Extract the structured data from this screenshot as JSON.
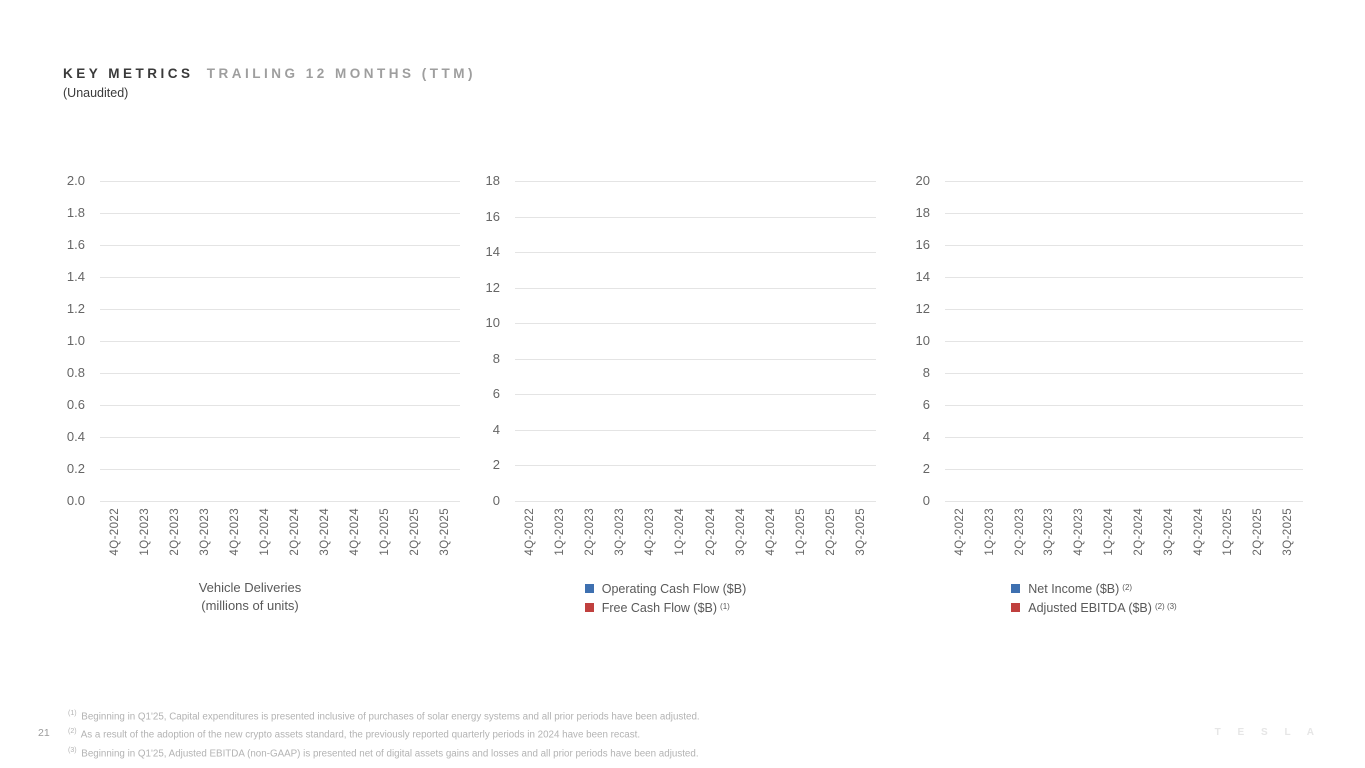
{
  "slide": {
    "title_primary": "KEY METRICS",
    "title_secondary": "TRAILING 12 MONTHS (TTM)",
    "subtitle": "(Unaudited)",
    "page_number": "21",
    "brand_wordmark": "T E S L A"
  },
  "colors": {
    "series_blue": "#3e70b0",
    "series_red": "#c0403e",
    "gridline": "#e4e4e4",
    "axis_text": "#666666",
    "caption_text": "#595959",
    "footnote_text": "#b3b3b3"
  },
  "x_categories": [
    "4Q-2022",
    "1Q-2023",
    "2Q-2023",
    "3Q-2023",
    "4Q-2023",
    "1Q-2024",
    "2Q-2024",
    "3Q-2024",
    "4Q-2024",
    "1Q-2025",
    "2Q-2025",
    "3Q-2025"
  ],
  "chart_data": [
    {
      "type": "bar",
      "title": "Vehicle Deliveries",
      "title_line2": "(millions of units)",
      "categories": [
        "4Q-2022",
        "1Q-2023",
        "2Q-2023",
        "3Q-2023",
        "4Q-2023",
        "1Q-2024",
        "2Q-2024",
        "3Q-2024",
        "4Q-2024",
        "1Q-2025",
        "2Q-2025",
        "3Q-2025"
      ],
      "y_ticks": [
        "2.0",
        "1.8",
        "1.6",
        "1.4",
        "1.2",
        "1.0",
        "0.8",
        "0.6",
        "0.4",
        "0.2",
        "0.0"
      ],
      "ylim": [
        0.0,
        2.0
      ],
      "grid": true,
      "legend": [],
      "series": [],
      "values_rendered": false
    },
    {
      "type": "bar",
      "title": "",
      "categories": [
        "4Q-2022",
        "1Q-2023",
        "2Q-2023",
        "3Q-2023",
        "4Q-2023",
        "1Q-2024",
        "2Q-2024",
        "3Q-2024",
        "4Q-2024",
        "1Q-2025",
        "2Q-2025",
        "3Q-2025"
      ],
      "y_ticks": [
        "18",
        "16",
        "14",
        "12",
        "10",
        "8",
        "6",
        "4",
        "2",
        "0"
      ],
      "ylim": [
        0,
        18
      ],
      "grid": true,
      "legend_position": "bottom",
      "legend": [
        {
          "label": "Operating Cash Flow ($B)",
          "sup": "",
          "color": "#3e70b0"
        },
        {
          "label": "Free Cash Flow ($B)",
          "sup": "(1)",
          "color": "#c0403e"
        }
      ],
      "series": [
        {
          "name": "Operating Cash Flow ($B)",
          "values": []
        },
        {
          "name": "Free Cash Flow ($B)",
          "values": []
        }
      ],
      "values_rendered": false
    },
    {
      "type": "bar",
      "title": "",
      "categories": [
        "4Q-2022",
        "1Q-2023",
        "2Q-2023",
        "3Q-2023",
        "4Q-2023",
        "1Q-2024",
        "2Q-2024",
        "3Q-2024",
        "4Q-2024",
        "1Q-2025",
        "2Q-2025",
        "3Q-2025"
      ],
      "y_ticks": [
        "20",
        "18",
        "16",
        "14",
        "12",
        "10",
        "8",
        "6",
        "4",
        "2",
        "0"
      ],
      "ylim": [
        0,
        20
      ],
      "grid": true,
      "legend_position": "bottom",
      "legend": [
        {
          "label": "Net Income ($B)",
          "sup": "(2)",
          "color": "#3e70b0"
        },
        {
          "label": "Adjusted EBITDA ($B)",
          "sup": "(2) (3)",
          "color": "#c0403e"
        }
      ],
      "series": [
        {
          "name": "Net Income ($B)",
          "values": []
        },
        {
          "name": "Adjusted EBITDA ($B)",
          "values": []
        }
      ],
      "values_rendered": false
    }
  ],
  "footnotes": [
    {
      "sup": "(1)",
      "text": "Beginning in Q1'25, Capital expenditures is presented inclusive of purchases of solar energy systems and all prior periods have been adjusted."
    },
    {
      "sup": "(2)",
      "text": "As a result of the adoption of the new crypto assets standard, the previously reported quarterly periods in 2024 have been recast."
    },
    {
      "sup": "(3)",
      "text": "Beginning in Q1'25, Adjusted EBITDA (non-GAAP) is presented net of digital assets gains and losses and all prior periods have been adjusted."
    }
  ]
}
